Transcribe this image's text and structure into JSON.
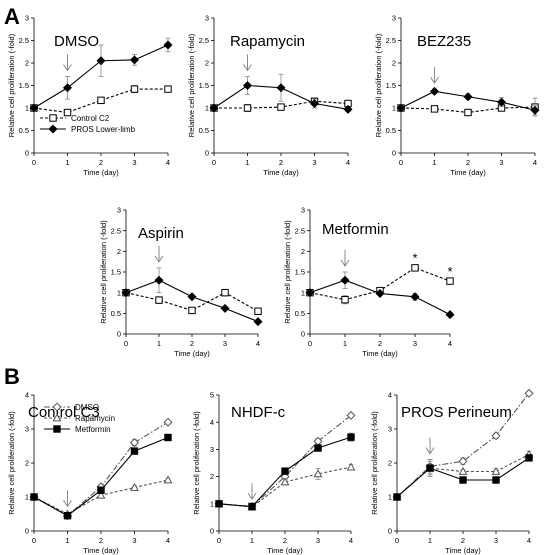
{
  "figure": {
    "panel_a_label": "A",
    "panel_b_label": "B"
  },
  "colors": {
    "line": "#000000",
    "light_line": "#888888",
    "arrow": "#888888",
    "errbar": "#888888"
  },
  "chart_data": [
    {
      "id": "dmso",
      "type": "line",
      "title": "DMSO",
      "xlabel": "Time (day)",
      "ylabel": "Relative cell proliferation (-fold)",
      "x": [
        0,
        1,
        2,
        3,
        4
      ],
      "xlim": [
        0,
        4
      ],
      "ylim": [
        0,
        3
      ],
      "yticks": [
        0,
        0.5,
        1,
        1.5,
        2,
        2.5,
        3
      ],
      "grid": false,
      "arrow_at_x": 1,
      "legend": {
        "placement": "bottom-left"
      },
      "series": [
        {
          "name": "Control C2",
          "style": "dashed",
          "marker": "open-square",
          "values": [
            1.0,
            0.9,
            1.17,
            1.42,
            1.42
          ],
          "errors": [
            0.0,
            0.05,
            0.05,
            0.08,
            0.05
          ]
        },
        {
          "name": "PROS Lower-limb",
          "style": "solid",
          "marker": "filled-diamond",
          "values": [
            1.0,
            1.45,
            2.05,
            2.07,
            2.4
          ],
          "errors": [
            0.0,
            0.25,
            0.35,
            0.12,
            0.15
          ]
        }
      ]
    },
    {
      "id": "rapamycin",
      "type": "line",
      "title": "Rapamycin",
      "xlabel": "Time (day)",
      "ylabel": "Relative cell proliferation (-fold)",
      "x": [
        0,
        1,
        2,
        3,
        4
      ],
      "xlim": [
        0,
        4
      ],
      "ylim": [
        0,
        3
      ],
      "yticks": [
        0,
        0.5,
        1,
        1.5,
        2,
        2.5,
        3
      ],
      "grid": false,
      "arrow_at_x": 1,
      "series": [
        {
          "style": "dashed",
          "marker": "open-square",
          "values": [
            1.0,
            1.0,
            1.02,
            1.15,
            1.1
          ],
          "errors": [
            0.0,
            0.08,
            0.05,
            0.06,
            0.05
          ]
        },
        {
          "style": "solid",
          "marker": "filled-diamond",
          "values": [
            1.0,
            1.5,
            1.45,
            1.1,
            0.97
          ],
          "errors": [
            0.0,
            0.2,
            0.3,
            0.1,
            0.05
          ]
        }
      ]
    },
    {
      "id": "bez235",
      "type": "line",
      "title": "BEZ235",
      "xlabel": "Time (day)",
      "ylabel": "Relative cell proliferation (-fold)",
      "x": [
        0,
        1,
        2,
        3,
        4
      ],
      "xlim": [
        0,
        4
      ],
      "ylim": [
        0,
        3
      ],
      "yticks": [
        0,
        0.5,
        1,
        1.5,
        2,
        2.5,
        3
      ],
      "grid": false,
      "arrow_at_x": 1,
      "series": [
        {
          "style": "dashed",
          "marker": "open-square",
          "values": [
            1.0,
            0.98,
            0.9,
            1.0,
            1.02
          ],
          "errors": [
            0.0,
            0.05,
            0.04,
            0.05,
            0.2
          ]
        },
        {
          "style": "solid",
          "marker": "filled-diamond",
          "values": [
            1.0,
            1.37,
            1.25,
            1.13,
            0.95
          ],
          "errors": [
            0.0,
            0.05,
            0.06,
            0.1,
            0.1
          ]
        }
      ]
    },
    {
      "id": "aspirin",
      "type": "line",
      "title": "Aspirin",
      "xlabel": "Time (day)",
      "ylabel": "Relative cell proliferation (-fold)",
      "x": [
        0,
        1,
        2,
        3,
        4
      ],
      "xlim": [
        0,
        4
      ],
      "ylim": [
        0,
        3
      ],
      "yticks": [
        0,
        0.5,
        1,
        1.5,
        2,
        2.5,
        3
      ],
      "grid": false,
      "arrow_at_x": 1,
      "series": [
        {
          "style": "dashed",
          "marker": "open-square",
          "values": [
            1.0,
            0.82,
            0.57,
            1.0,
            0.55
          ],
          "errors": [
            0.0,
            0.08,
            0.04,
            0.08,
            0.05
          ]
        },
        {
          "style": "solid",
          "marker": "filled-diamond",
          "values": [
            1.0,
            1.3,
            0.9,
            0.62,
            0.3
          ],
          "errors": [
            0.0,
            0.3,
            0.03,
            0.04,
            0.03
          ]
        }
      ]
    },
    {
      "id": "metformin",
      "type": "line",
      "title": "Metformin",
      "xlabel": "Time (day)",
      "ylabel": "Relative cell proliferation (-fold)",
      "x": [
        0,
        1,
        2,
        3,
        4
      ],
      "xlim": [
        0,
        4
      ],
      "ylim": [
        0,
        3
      ],
      "yticks": [
        0,
        0.5,
        1,
        1.5,
        2,
        2.5,
        3
      ],
      "grid": false,
      "arrow_at_x": 1,
      "annotations": [
        {
          "text": "*",
          "x": 3
        },
        {
          "text": "*",
          "x": 4
        }
      ],
      "series": [
        {
          "style": "dashed",
          "marker": "open-square",
          "values": [
            1.0,
            0.83,
            1.05,
            1.6,
            1.28
          ],
          "errors": [
            0.0,
            0.1,
            0.05,
            0.03,
            0.03
          ]
        },
        {
          "style": "solid",
          "marker": "filled-diamond",
          "values": [
            1.0,
            1.3,
            0.98,
            0.9,
            0.47
          ],
          "errors": [
            0.0,
            0.2,
            0.03,
            0.08,
            0.03
          ]
        }
      ]
    },
    {
      "id": "control_c3",
      "type": "line",
      "title": "Control C3",
      "xlabel": "Time (day)",
      "ylabel": "Relative cell proliferation (-fold)",
      "x": [
        0,
        1,
        2,
        3,
        4
      ],
      "xlim": [
        0,
        4
      ],
      "ylim": [
        0,
        4
      ],
      "yticks": [
        0,
        1,
        2,
        3,
        4
      ],
      "grid": false,
      "arrow_at_x": 1,
      "legend": {
        "placement": "top-left"
      },
      "series": [
        {
          "name": "DMSO",
          "style": "dashdot",
          "marker": "open-diamond",
          "values": [
            1.0,
            0.45,
            1.3,
            2.6,
            3.2
          ],
          "errors": [
            0.0,
            0.05,
            0.05,
            0.1,
            0.05
          ]
        },
        {
          "name": "Rapamycin",
          "style": "dashed",
          "marker": "open-triangle",
          "values": [
            1.0,
            0.5,
            1.05,
            1.28,
            1.5
          ],
          "errors": [
            0.0,
            0.05,
            0.05,
            0.05,
            0.05
          ]
        },
        {
          "name": "Metformin",
          "style": "solid",
          "marker": "filled-square",
          "values": [
            1.0,
            0.45,
            1.2,
            2.35,
            2.75
          ],
          "errors": [
            0.0,
            0.05,
            0.05,
            0.05,
            0.05
          ]
        }
      ]
    },
    {
      "id": "nhdf_c",
      "type": "line",
      "title": "NHDF-c",
      "xlabel": "Time (day)",
      "ylabel": "Relative cell proliferation (-fold)",
      "x": [
        0,
        1,
        2,
        3,
        4
      ],
      "xlim": [
        0,
        4
      ],
      "ylim": [
        0,
        5
      ],
      "yticks": [
        0,
        1,
        2,
        3,
        4,
        5
      ],
      "grid": false,
      "arrow_at_x": 1,
      "series": [
        {
          "style": "dashdot",
          "marker": "open-diamond",
          "values": [
            1.0,
            0.9,
            2.0,
            3.3,
            4.25
          ],
          "errors": [
            0.0,
            0.05,
            0.08,
            0.1,
            0.05
          ]
        },
        {
          "style": "dashed",
          "marker": "open-triangle",
          "values": [
            1.0,
            0.88,
            1.8,
            2.1,
            2.35
          ],
          "errors": [
            0.0,
            0.05,
            0.1,
            0.2,
            0.1
          ]
        },
        {
          "style": "solid",
          "marker": "filled-square",
          "values": [
            1.0,
            0.9,
            2.2,
            3.05,
            3.45
          ],
          "errors": [
            0.0,
            0.05,
            0.08,
            0.1,
            0.15
          ]
        }
      ]
    },
    {
      "id": "pros_perineum",
      "type": "line",
      "title": "PROS Perineum",
      "xlabel": "Time (day)",
      "ylabel": "Relative cell proliferation (-fold)",
      "x": [
        0,
        1,
        2,
        3,
        4
      ],
      "xlim": [
        0,
        4
      ],
      "ylim": [
        0,
        4
      ],
      "yticks": [
        0,
        1,
        2,
        3,
        4
      ],
      "grid": false,
      "arrow_at_x": 1,
      "series": [
        {
          "style": "dashdot",
          "marker": "open-diamond",
          "values": [
            1.0,
            1.9,
            2.05,
            2.8,
            4.05
          ],
          "errors": [
            0.0,
            0.2,
            0.1,
            0.08,
            0.05
          ]
        },
        {
          "style": "dashed",
          "marker": "open-triangle",
          "values": [
            1.0,
            1.85,
            1.75,
            1.75,
            2.25
          ],
          "errors": [
            0.0,
            0.25,
            0.05,
            0.08,
            0.1
          ]
        },
        {
          "style": "solid",
          "marker": "filled-square",
          "values": [
            1.0,
            1.85,
            1.5,
            1.5,
            2.15
          ],
          "errors": [
            0.0,
            0.2,
            0.05,
            0.05,
            0.08
          ]
        }
      ]
    }
  ]
}
